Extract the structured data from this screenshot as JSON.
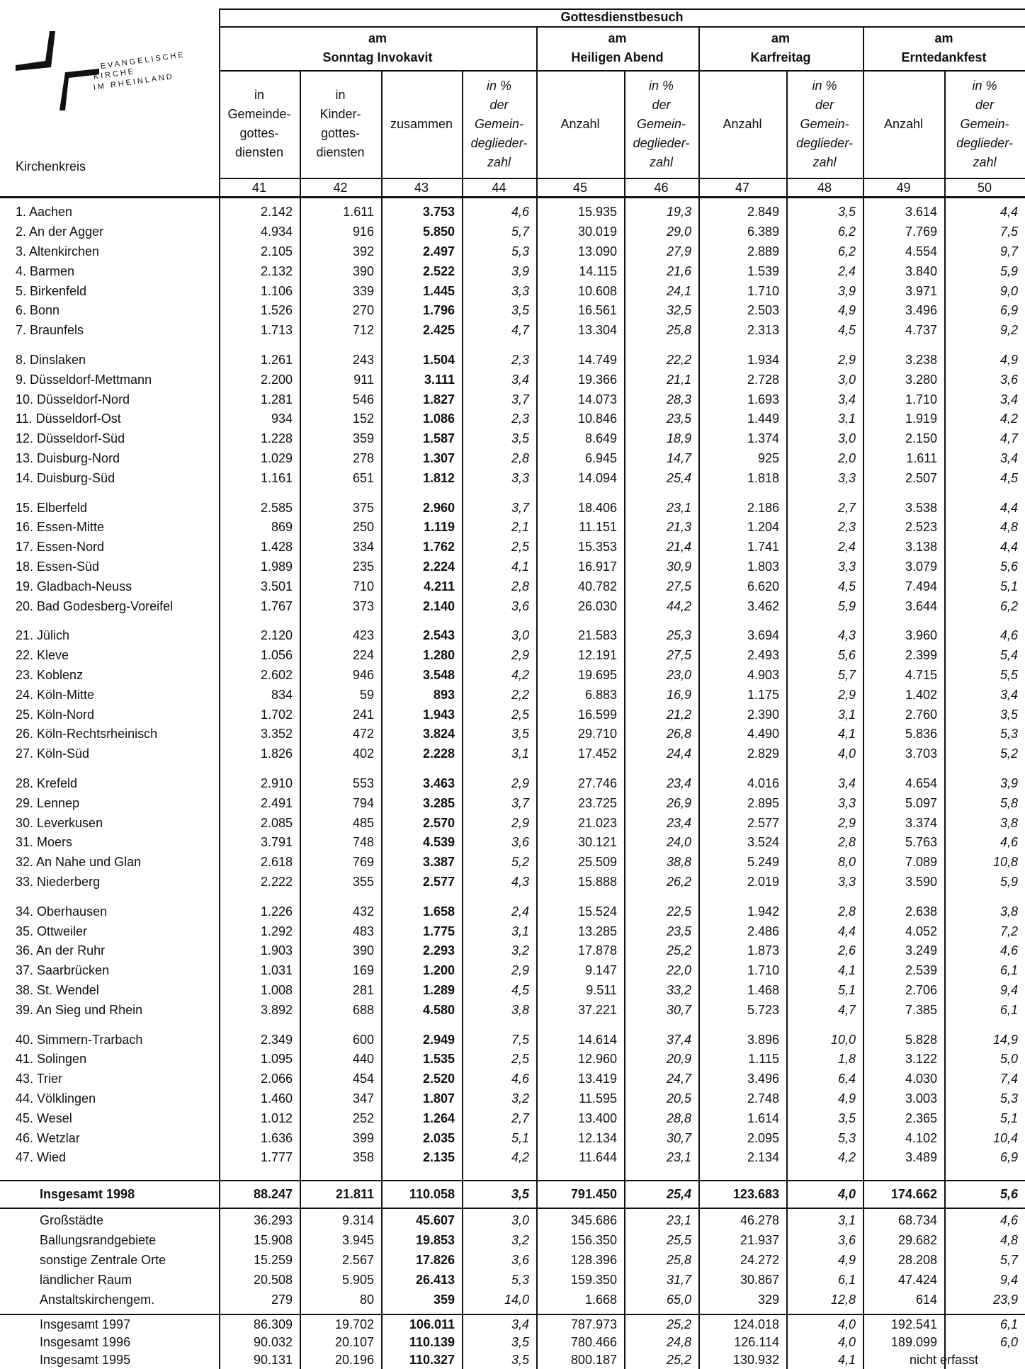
{
  "logo": {
    "lines": [
      "EVANGELISCHE",
      "KIRCHE",
      "IM RHEINLAND"
    ]
  },
  "table": {
    "stub_label": "Kirchenkreis",
    "group": "Gottesdienstbesuch",
    "subgroups": [
      [
        "am",
        "Sonntag Invokavit"
      ],
      [
        "am",
        "Heiligen Abend"
      ],
      [
        "am",
        "Karfreitag"
      ],
      [
        "am",
        "Erntedankfest"
      ]
    ],
    "columns": [
      [
        "in",
        "Gemeinde-",
        "gottes-",
        "diensten"
      ],
      [
        "in",
        "Kinder-",
        "gottes-",
        "diensten"
      ],
      [
        "zusammen"
      ],
      [
        "in  %",
        "der",
        "Gemein-",
        "deglieder-",
        "zahl"
      ],
      [
        "Anzahl"
      ],
      [
        "in  %",
        "der",
        "Gemein-",
        "deglieder-",
        "zahl"
      ],
      [
        "Anzahl"
      ],
      [
        "in  %",
        "der",
        "Gemein-",
        "deglieder-",
        "zahl"
      ],
      [
        "Anzahl"
      ],
      [
        "in  %",
        "der",
        "Gemein-",
        "deglieder-",
        "zahl"
      ]
    ],
    "column_numbers": [
      "41",
      "42",
      "43",
      "44",
      "45",
      "46",
      "47",
      "48",
      "49",
      "50"
    ],
    "blocks": [
      [
        [
          "1. Aachen",
          "2.142",
          "1.611",
          "3.753",
          "4,6",
          "15.935",
          "19,3",
          "2.849",
          "3,5",
          "3.614",
          "4,4"
        ],
        [
          "2. An der Agger",
          "4.934",
          "916",
          "5.850",
          "5,7",
          "30.019",
          "29,0",
          "6.389",
          "6,2",
          "7.769",
          "7,5"
        ],
        [
          "3. Altenkirchen",
          "2.105",
          "392",
          "2.497",
          "5,3",
          "13.090",
          "27,9",
          "2.889",
          "6,2",
          "4.554",
          "9,7"
        ],
        [
          "4. Barmen",
          "2.132",
          "390",
          "2.522",
          "3,9",
          "14.115",
          "21,6",
          "1.539",
          "2,4",
          "3.840",
          "5,9"
        ],
        [
          "5. Birkenfeld",
          "1.106",
          "339",
          "1.445",
          "3,3",
          "10.608",
          "24,1",
          "1.710",
          "3,9",
          "3.971",
          "9,0"
        ],
        [
          "6. Bonn",
          "1.526",
          "270",
          "1.796",
          "3,5",
          "16.561",
          "32,5",
          "2.503",
          "4,9",
          "3.496",
          "6,9"
        ],
        [
          "7. Braunfels",
          "1.713",
          "712",
          "2.425",
          "4,7",
          "13.304",
          "25,8",
          "2.313",
          "4,5",
          "4.737",
          "9,2"
        ]
      ],
      [
        [
          "8. Dinslaken",
          "1.261",
          "243",
          "1.504",
          "2,3",
          "14.749",
          "22,2",
          "1.934",
          "2,9",
          "3.238",
          "4,9"
        ],
        [
          "9. Düsseldorf-Mettmann",
          "2.200",
          "911",
          "3.111",
          "3,4",
          "19.366",
          "21,1",
          "2.728",
          "3,0",
          "3.280",
          "3,6"
        ],
        [
          "10. Düsseldorf-Nord",
          "1.281",
          "546",
          "1.827",
          "3,7",
          "14.073",
          "28,3",
          "1.693",
          "3,4",
          "1.710",
          "3,4"
        ],
        [
          "11. Düsseldorf-Ost",
          "934",
          "152",
          "1.086",
          "2,3",
          "10.846",
          "23,5",
          "1.449",
          "3,1",
          "1.919",
          "4,2"
        ],
        [
          "12. Düsseldorf-Süd",
          "1.228",
          "359",
          "1.587",
          "3,5",
          "8.649",
          "18,9",
          "1.374",
          "3,0",
          "2.150",
          "4,7"
        ],
        [
          "13. Duisburg-Nord",
          "1.029",
          "278",
          "1.307",
          "2,8",
          "6.945",
          "14,7",
          "925",
          "2,0",
          "1.611",
          "3,4"
        ],
        [
          "14. Duisburg-Süd",
          "1.161",
          "651",
          "1.812",
          "3,3",
          "14.094",
          "25,4",
          "1.818",
          "3,3",
          "2.507",
          "4,5"
        ]
      ],
      [
        [
          "15. Elberfeld",
          "2.585",
          "375",
          "2.960",
          "3,7",
          "18.406",
          "23,1",
          "2.186",
          "2,7",
          "3.538",
          "4,4"
        ],
        [
          "16. Essen-Mitte",
          "869",
          "250",
          "1.119",
          "2,1",
          "11.151",
          "21,3",
          "1.204",
          "2,3",
          "2.523",
          "4,8"
        ],
        [
          "17. Essen-Nord",
          "1.428",
          "334",
          "1.762",
          "2,5",
          "15.353",
          "21,4",
          "1.741",
          "2,4",
          "3.138",
          "4,4"
        ],
        [
          "18. Essen-Süd",
          "1.989",
          "235",
          "2.224",
          "4,1",
          "16.917",
          "30,9",
          "1.803",
          "3,3",
          "3.079",
          "5,6"
        ],
        [
          "19. Gladbach-Neuss",
          "3.501",
          "710",
          "4.211",
          "2,8",
          "40.782",
          "27,5",
          "6.620",
          "4,5",
          "7.494",
          "5,1"
        ],
        [
          "20. Bad Godesberg-Voreifel",
          "1.767",
          "373",
          "2.140",
          "3,6",
          "26.030",
          "44,2",
          "3.462",
          "5,9",
          "3.644",
          "6,2"
        ]
      ],
      [
        [
          "21. Jülich",
          "2.120",
          "423",
          "2.543",
          "3,0",
          "21.583",
          "25,3",
          "3.694",
          "4,3",
          "3.960",
          "4,6"
        ],
        [
          "22. Kleve",
          "1.056",
          "224",
          "1.280",
          "2,9",
          "12.191",
          "27,5",
          "2.493",
          "5,6",
          "2.399",
          "5,4"
        ],
        [
          "23. Koblenz",
          "2.602",
          "946",
          "3.548",
          "4,2",
          "19.695",
          "23,0",
          "4.903",
          "5,7",
          "4.715",
          "5,5"
        ],
        [
          "24. Köln-Mitte",
          "834",
          "59",
          "893",
          "2,2",
          "6.883",
          "16,9",
          "1.175",
          "2,9",
          "1.402",
          "3,4"
        ],
        [
          "25. Köln-Nord",
          "1.702",
          "241",
          "1.943",
          "2,5",
          "16.599",
          "21,2",
          "2.390",
          "3,1",
          "2.760",
          "3,5"
        ],
        [
          "26. Köln-Rechtsrheinisch",
          "3.352",
          "472",
          "3.824",
          "3,5",
          "29.710",
          "26,8",
          "4.490",
          "4,1",
          "5.836",
          "5,3"
        ],
        [
          "27. Köln-Süd",
          "1.826",
          "402",
          "2.228",
          "3,1",
          "17.452",
          "24,4",
          "2.829",
          "4,0",
          "3.703",
          "5,2"
        ]
      ],
      [
        [
          "28. Krefeld",
          "2.910",
          "553",
          "3.463",
          "2,9",
          "27.746",
          "23,4",
          "4.016",
          "3,4",
          "4.654",
          "3,9"
        ],
        [
          "29. Lennep",
          "2.491",
          "794",
          "3.285",
          "3,7",
          "23.725",
          "26,9",
          "2.895",
          "3,3",
          "5.097",
          "5,8"
        ],
        [
          "30. Leverkusen",
          "2.085",
          "485",
          "2.570",
          "2,9",
          "21.023",
          "23,4",
          "2.577",
          "2,9",
          "3.374",
          "3,8"
        ],
        [
          "31. Moers",
          "3.791",
          "748",
          "4.539",
          "3,6",
          "30.121",
          "24,0",
          "3.524",
          "2,8",
          "5.763",
          "4,6"
        ],
        [
          "32. An Nahe und Glan",
          "2.618",
          "769",
          "3.387",
          "5,2",
          "25.509",
          "38,8",
          "5.249",
          "8,0",
          "7.089",
          "10,8"
        ],
        [
          "33. Niederberg",
          "2.222",
          "355",
          "2.577",
          "4,3",
          "15.888",
          "26,2",
          "2.019",
          "3,3",
          "3.590",
          "5,9"
        ]
      ],
      [
        [
          "34. Oberhausen",
          "1.226",
          "432",
          "1.658",
          "2,4",
          "15.524",
          "22,5",
          "1.942",
          "2,8",
          "2.638",
          "3,8"
        ],
        [
          "35. Ottweiler",
          "1.292",
          "483",
          "1.775",
          "3,1",
          "13.285",
          "23,5",
          "2.486",
          "4,4",
          "4.052",
          "7,2"
        ],
        [
          "36. An der Ruhr",
          "1.903",
          "390",
          "2.293",
          "3,2",
          "17.878",
          "25,2",
          "1.873",
          "2,6",
          "3.249",
          "4,6"
        ],
        [
          "37. Saarbrücken",
          "1.031",
          "169",
          "1.200",
          "2,9",
          "9.147",
          "22,0",
          "1.710",
          "4,1",
          "2.539",
          "6,1"
        ],
        [
          "38. St. Wendel",
          "1.008",
          "281",
          "1.289",
          "4,5",
          "9.511",
          "33,2",
          "1.468",
          "5,1",
          "2.706",
          "9,4"
        ],
        [
          "39. An Sieg und Rhein",
          "3.892",
          "688",
          "4.580",
          "3,8",
          "37.221",
          "30,7",
          "5.723",
          "4,7",
          "7.385",
          "6,1"
        ]
      ],
      [
        [
          "40. Simmern-Trarbach",
          "2.349",
          "600",
          "2.949",
          "7,5",
          "14.614",
          "37,4",
          "3.896",
          "10,0",
          "5.828",
          "14,9"
        ],
        [
          "41. Solingen",
          "1.095",
          "440",
          "1.535",
          "2,5",
          "12.960",
          "20,9",
          "1.115",
          "1,8",
          "3.122",
          "5,0"
        ],
        [
          "43. Trier",
          "2.066",
          "454",
          "2.520",
          "4,6",
          "13.419",
          "24,7",
          "3.496",
          "6,4",
          "4.030",
          "7,4"
        ],
        [
          "44. Völklingen",
          "1.460",
          "347",
          "1.807",
          "3,2",
          "11.595",
          "20,5",
          "2.748",
          "4,9",
          "3.003",
          "5,3"
        ],
        [
          "45. Wesel",
          "1.012",
          "252",
          "1.264",
          "2,7",
          "13.400",
          "28,8",
          "1.614",
          "3,5",
          "2.365",
          "5,1"
        ],
        [
          "46. Wetzlar",
          "1.636",
          "399",
          "2.035",
          "5,1",
          "12.134",
          "30,7",
          "2.095",
          "5,3",
          "4.102",
          "10,4"
        ],
        [
          "47. Wied",
          "1.777",
          "358",
          "2.135",
          "4,2",
          "11.644",
          "23,1",
          "2.134",
          "4,2",
          "3.489",
          "6,9"
        ]
      ]
    ],
    "total": [
      "Insgesamt 1998",
      "88.247",
      "21.811",
      "110.058",
      "3,5",
      "791.450",
      "25,4",
      "123.683",
      "4,0",
      "174.662",
      "5,6"
    ],
    "regions": [
      [
        "Großstädte",
        "36.293",
        "9.314",
        "45.607",
        "3,0",
        "345.686",
        "23,1",
        "46.278",
        "3,1",
        "68.734",
        "4,6"
      ],
      [
        "Ballungsrandgebiete",
        "15.908",
        "3.945",
        "19.853",
        "3,2",
        "156.350",
        "25,5",
        "21.937",
        "3,6",
        "29.682",
        "4,8"
      ],
      [
        "sonstige Zentrale Orte",
        "15.259",
        "2.567",
        "17.826",
        "3,6",
        "128.396",
        "25,8",
        "24.272",
        "4,9",
        "28.208",
        "5,7"
      ],
      [
        "ländlicher Raum",
        "20.508",
        "5.905",
        "26.413",
        "5,3",
        "159.350",
        "31,7",
        "30.867",
        "6,1",
        "47.424",
        "9,4"
      ],
      [
        "Anstaltskirchengem.",
        "279",
        "80",
        "359",
        "14,0",
        "1.668",
        "65,0",
        "329",
        "12,8",
        "614",
        "23,9"
      ]
    ],
    "years": [
      [
        "Insgesamt 1997",
        "86.309",
        "19.702",
        "106.011",
        "3,4",
        "787.973",
        "25,2",
        "124.018",
        "4,0",
        "192.541",
        "6,1"
      ],
      [
        "Insgesamt 1996",
        "90.032",
        "20.107",
        "110.139",
        "3,5",
        "780.466",
        "24,8",
        "126.114",
        "4,0",
        "189.099",
        "6,0"
      ],
      [
        "Insgesamt 1995",
        "90.131",
        "20.196",
        "110.327",
        "3,5",
        "800.187",
        "25,2",
        "130.932",
        "4,1",
        "nicht erfasst"
      ]
    ]
  }
}
